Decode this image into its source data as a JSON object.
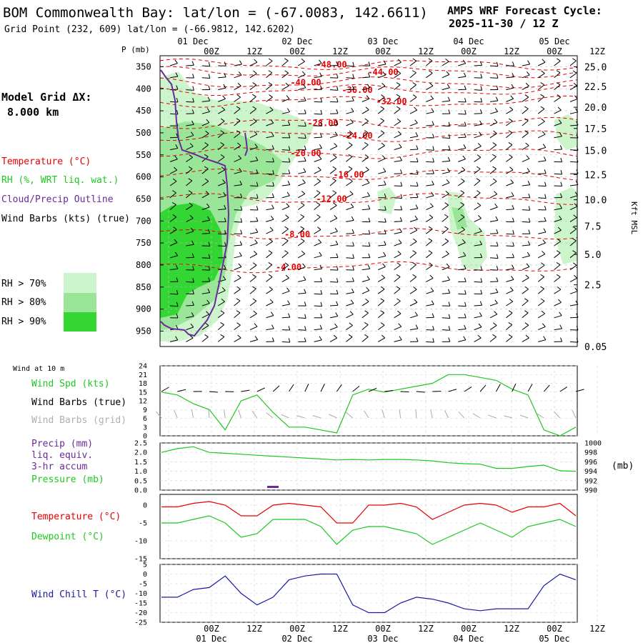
{
  "header": {
    "title": "BOM Commonwealth Bay:  lat/lon = (-67.0083, 142.6611)",
    "subtitle": "Grid Point (232, 609) lat/lon = (-66.9812, 142.6202)",
    "forecast_line1": "AMPS WRF Forecast Cycle:",
    "forecast_line2": "2025-11-30 / 12  Z"
  },
  "sidebar": {
    "grid_label": "Model Grid ΔX:",
    "grid_value": "8.000 km",
    "temperature": "Temperature (°C)",
    "rh": "RH (%, WRT liq. wat.)",
    "cloud": "Cloud/Precip Outline",
    "wind": "Wind Barbs (kts) (true)",
    "rh70": "RH > 70%",
    "rh80": "RH > 80%",
    "rh90": "RH > 90%",
    "wind10m": "Wind at 10 m",
    "wspd": "Wind Spd (kts)",
    "wbarbs_true": "Wind Barbs (true)",
    "wbarbs_grid": "Wind Barbs (grid)",
    "precip1": "Precip (mm)",
    "precip2": "liq. equiv.",
    "precip3": "3-hr accum",
    "pressure": "Pressure (mb)",
    "mb_unit": "(mb)",
    "temp2": "Temperature (°C)",
    "dewpoint": "Dewpoint (°C)",
    "windchill": "Wind Chill T (°C)",
    "kft": "Kft MSL"
  },
  "colors": {
    "rh70": "#ccf5cc",
    "rh80": "#99e699",
    "rh90": "#33d633",
    "temp": "#e60000",
    "green": "#1ec81e",
    "purple": "#6a2a9a",
    "blue": "#1a1aa0",
    "grid": "#999999"
  },
  "chart_data": [
    {
      "type": "cross-section",
      "name": "upper",
      "p_label": "P (mb)",
      "p_ticks": [
        "350",
        "400",
        "450",
        "500",
        "550",
        "600",
        "650",
        "700",
        "750",
        "800",
        "850",
        "900",
        "950"
      ],
      "p_range": [
        325,
        985
      ],
      "alt_ticks": [
        {
          "p": 350,
          "label": "25.0"
        },
        {
          "p": 395,
          "label": "22.5"
        },
        {
          "p": 442,
          "label": "20.0"
        },
        {
          "p": 490,
          "label": "17.5"
        },
        {
          "p": 540,
          "label": "15.0"
        },
        {
          "p": 595,
          "label": "12.5"
        },
        {
          "p": 652,
          "label": "10.0"
        },
        {
          "p": 712,
          "label": "7.5"
        },
        {
          "p": 776,
          "label": "5.0"
        },
        {
          "p": 845,
          "label": "2.5"
        },
        {
          "p": 985,
          "label": "0.05"
        }
      ],
      "temp_contours": [
        {
          "label": "-48.00",
          "t": 20,
          "p": 345
        },
        {
          "label": "-44.00",
          "t": 26,
          "p": 362
        },
        {
          "label": "-40.00",
          "t": 17,
          "p": 386
        },
        {
          "label": "-36.00",
          "t": 23,
          "p": 403
        },
        {
          "label": "-32.00",
          "t": 27,
          "p": 429
        },
        {
          "label": "-28.00",
          "t": 19,
          "p": 478
        },
        {
          "label": "-24.00",
          "t": 23,
          "p": 507
        },
        {
          "label": "-20.00",
          "t": 17,
          "p": 546
        },
        {
          "label": "-16.00",
          "t": 22,
          "p": 595
        },
        {
          "label": "-12.00",
          "t": 20,
          "p": 650
        },
        {
          "label": "-8.00",
          "t": 16,
          "p": 730
        },
        {
          "label": "-4.00",
          "t": 15,
          "p": 805
        }
      ]
    },
    {
      "type": "line",
      "name": "wind",
      "yticks": [
        "24",
        "21",
        "18",
        "15",
        "12",
        "9",
        "6",
        "3",
        "0"
      ],
      "ylim": [
        0,
        24
      ],
      "series": [
        {
          "name": "Wind Spd (kts)",
          "values": [
            15,
            14,
            11,
            9,
            2,
            12,
            14,
            8,
            3,
            3,
            2,
            1,
            14,
            16,
            15,
            16,
            17,
            18,
            21,
            21,
            20,
            19,
            16,
            14,
            2,
            0,
            3
          ]
        }
      ]
    },
    {
      "type": "line",
      "name": "pressure",
      "yticks_left": [
        "2.5",
        "2.0",
        "1.5",
        "1.0",
        "0.5",
        "0.0"
      ],
      "yticks_right": [
        "1000",
        "998",
        "996",
        "994",
        "992",
        "990"
      ],
      "ylim": [
        990,
        1000
      ],
      "series": [
        {
          "name": "Pressure (mb)",
          "values": [
            998,
            998.8,
            999.2,
            998,
            997.8,
            997.6,
            997.4,
            997.2,
            997,
            996.8,
            996.6,
            996.4,
            996.5,
            996.4,
            996.5,
            996.5,
            996.4,
            996.2,
            995.8,
            995.6,
            995.5,
            994.6,
            994.6,
            995,
            995.3,
            994.1,
            994
          ]
        }
      ],
      "precip": [
        {
          "t": 3,
          "mm": 0.1
        }
      ]
    },
    {
      "type": "line",
      "name": "temp-dew",
      "yticks": [
        "0",
        "-5",
        "-10",
        "-15"
      ],
      "ylim": [
        -15,
        3
      ],
      "series": [
        {
          "name": "Temperature (°C)",
          "values": [
            -0.5,
            -0.5,
            0.5,
            1,
            0,
            -3,
            -3,
            0,
            0.5,
            0,
            -0.5,
            -5,
            -5,
            0,
            0,
            0.5,
            -0.5,
            -4,
            -2,
            0,
            0.5,
            0,
            -2,
            -0.5,
            -0.5,
            0.5,
            -3
          ]
        },
        {
          "name": "Dewpoint (°C)",
          "values": [
            -5,
            -5,
            -4,
            -3,
            -5,
            -9,
            -8,
            -4,
            -4,
            -4,
            -6,
            -11,
            -7,
            -6,
            -6,
            -7,
            -8,
            -11,
            -9,
            -7,
            -5,
            -7,
            -9,
            -6,
            -5,
            -4,
            -6
          ]
        }
      ]
    },
    {
      "type": "line",
      "name": "windchill",
      "yticks": [
        "5",
        "0",
        "-5",
        "-10",
        "-15",
        "-20",
        "-25"
      ],
      "ylim": [
        -25,
        5
      ],
      "series": [
        {
          "name": "Wind Chill T (°C)",
          "values": [
            -12,
            -12,
            -8,
            -7,
            -1,
            -10,
            -16,
            -12,
            -3,
            -1,
            0,
            0,
            -16,
            -20,
            -20,
            -15,
            -12,
            -13,
            -15,
            -18,
            -19,
            -18,
            -18,
            -18,
            -6,
            0,
            -3
          ]
        }
      ]
    }
  ],
  "time_axis": {
    "top": [
      {
        "t": 0,
        "hour": "",
        "date": "01 Dec"
      },
      {
        "t": 1,
        "hour": "00Z",
        "date": ""
      },
      {
        "t": 2,
        "hour": "12Z",
        "date": ""
      },
      {
        "t": 3,
        "hour": "00Z",
        "date": "02 Dec"
      },
      {
        "t": 4,
        "hour": "12Z",
        "date": ""
      },
      {
        "t": 5,
        "hour": "00Z",
        "date": "03 Dec"
      },
      {
        "t": 6,
        "hour": "12Z",
        "date": ""
      },
      {
        "t": 7,
        "hour": "00Z",
        "date": "04 Dec"
      },
      {
        "t": 8,
        "hour": "12Z",
        "date": ""
      },
      {
        "t": 9,
        "hour": "00Z",
        "date": "05 Dec"
      },
      {
        "t": 10,
        "hour": "12Z",
        "date": ""
      }
    ],
    "bottom": [
      {
        "hour": "00Z",
        "date": "01 Dec"
      },
      {
        "hour": "12Z",
        "date": ""
      },
      {
        "hour": "00Z",
        "date": "02 Dec"
      },
      {
        "hour": "12Z",
        "date": ""
      },
      {
        "hour": "00Z",
        "date": "03 Dec"
      },
      {
        "hour": "12Z",
        "date": ""
      },
      {
        "hour": "00Z",
        "date": "04 Dec"
      },
      {
        "hour": "12Z",
        "date": ""
      },
      {
        "hour": "00Z",
        "date": "05 Dec"
      },
      {
        "hour": "12Z",
        "date": ""
      }
    ]
  }
}
